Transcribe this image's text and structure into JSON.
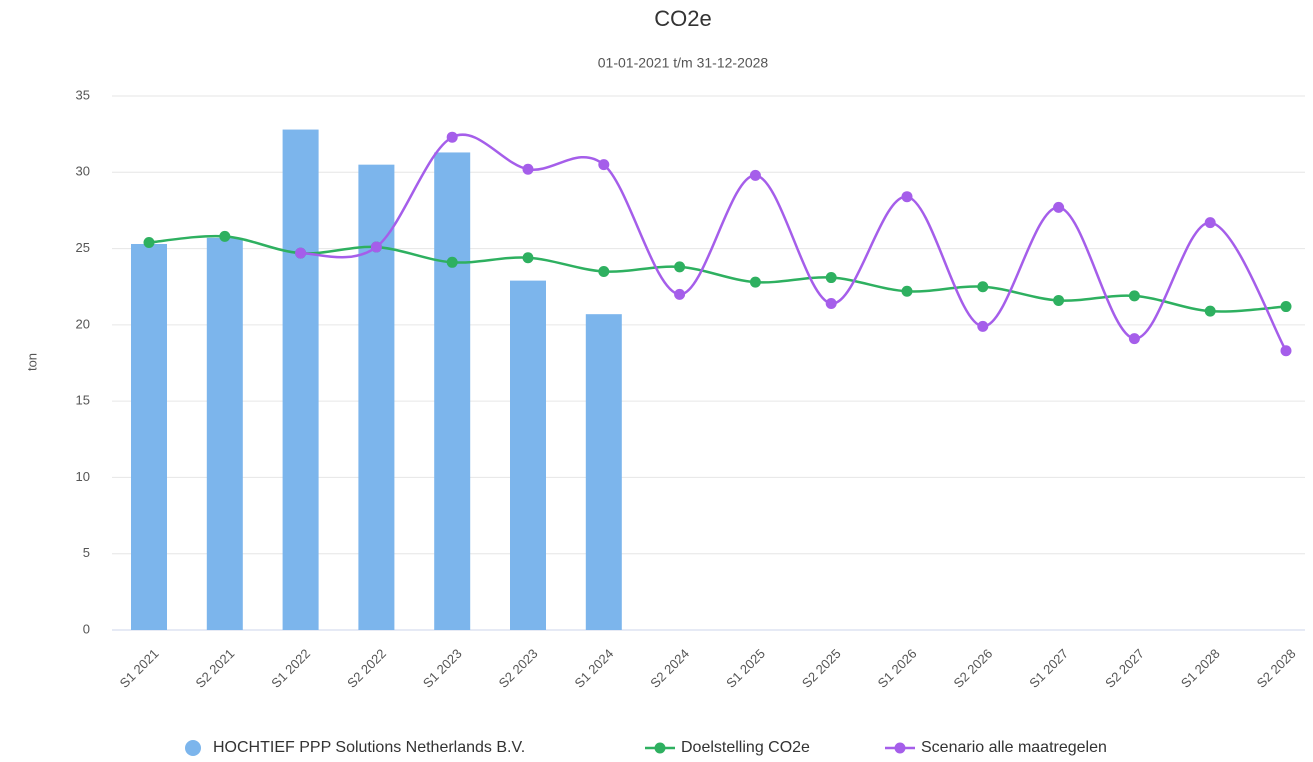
{
  "chart_data": {
    "type": "bar-line",
    "title": "CO2e",
    "subtitle": "01-01-2021 t/m 31-12-2028",
    "y_label": "ton",
    "categories": [
      "S1 2021",
      "S2 2021",
      "S1 2022",
      "S2 2022",
      "S1 2023",
      "S2 2023",
      "S1 2024",
      "S2 2024",
      "S1 2025",
      "S2 2025",
      "S1 2026",
      "S2 2026",
      "S1 2027",
      "S2 2027",
      "S1 2028",
      "S2 2028"
    ],
    "series": [
      {
        "name": "HOCHTIEF PPP Solutions Netherlands B.V.",
        "type": "bar",
        "color": "#7cb5ec",
        "values": [
          25.3,
          25.7,
          32.8,
          30.5,
          31.3,
          22.9,
          20.7,
          null,
          null,
          null,
          null,
          null,
          null,
          null,
          null,
          null
        ]
      },
      {
        "name": "Doelstelling CO2e",
        "type": "line",
        "color": "#2eb060",
        "values": [
          25.4,
          25.8,
          24.7,
          25.1,
          24.1,
          24.4,
          23.5,
          23.8,
          22.8,
          23.1,
          22.2,
          22.5,
          21.6,
          21.9,
          20.9,
          21.2
        ]
      },
      {
        "name": "Scenario alle maatregelen",
        "type": "line",
        "color": "#a55eea",
        "values": [
          null,
          null,
          24.7,
          25.1,
          32.3,
          30.2,
          30.5,
          22.0,
          29.8,
          21.4,
          28.4,
          19.9,
          27.7,
          19.1,
          26.7,
          18.3
        ]
      }
    ],
    "ylim": [
      0,
      35
    ],
    "yticks": [
      0,
      5,
      10,
      15,
      20,
      25,
      30,
      35
    ],
    "grid": true,
    "legend": "bottom"
  }
}
